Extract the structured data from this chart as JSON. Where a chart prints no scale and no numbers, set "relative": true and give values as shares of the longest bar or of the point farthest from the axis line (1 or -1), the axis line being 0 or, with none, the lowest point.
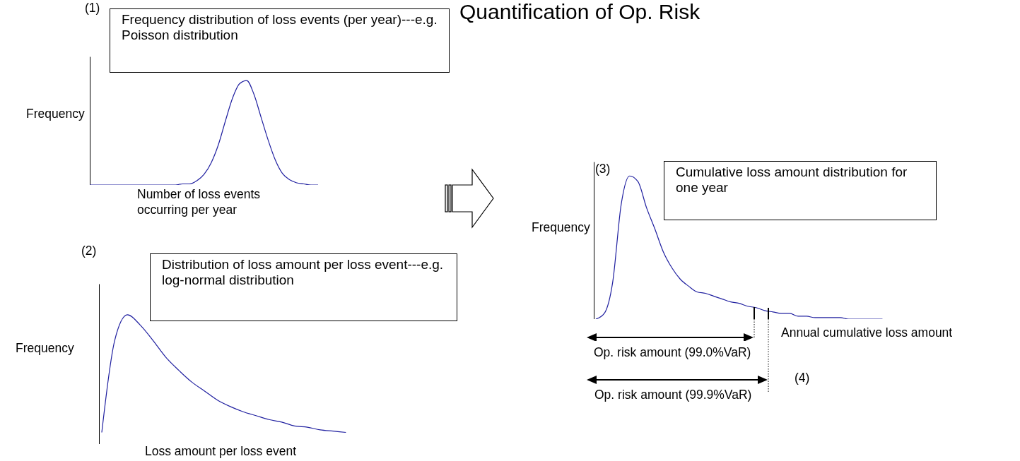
{
  "chart_data": [
    {
      "type": "line",
      "title": "Frequency distribution of loss events (per year)---e.g. Poisson distribution",
      "ylabel": "Frequency",
      "xlabel": "Number of loss events occurring per year",
      "annotations": [
        "(1)",
        "Quantification of Op. Risk"
      ],
      "relative": true,
      "categories": [
        null,
        null,
        null,
        null,
        null,
        null,
        null,
        null,
        null,
        null,
        null,
        null,
        null,
        null,
        null,
        null,
        null,
        null,
        null,
        null,
        null,
        null,
        null,
        null,
        null,
        null,
        null,
        null,
        null,
        null,
        null,
        null,
        null
      ],
      "series": [
        {
          "color": "#2020a0",
          "values": [
            0,
            0,
            0,
            0,
            0,
            0,
            0,
            0,
            0,
            0,
            0,
            0,
            0,
            0.01,
            0.01,
            0.04,
            0.1,
            0.21,
            0.38,
            0.61,
            0.83,
            0.97,
            1,
            0.87,
            0.65,
            0.43,
            0.24,
            0.11,
            0.05,
            0.02,
            0.01,
            0,
            0
          ]
        }
      ]
    },
    {
      "type": "line",
      "title": "Distribution of loss amount per loss event---e.g. log-normal distribution",
      "ylabel": "Frequency",
      "xlabel": "Loss amount per loss event",
      "annotations": [
        "(2)"
      ],
      "relative": true,
      "categories": [
        null,
        null,
        null,
        null,
        null,
        null,
        null,
        null,
        null,
        null,
        null,
        null,
        null,
        null,
        null,
        null,
        null,
        null,
        null,
        null
      ],
      "series": [
        {
          "color": "#2020a0",
          "values": [
            0.09,
            0.8,
            1,
            0.92,
            0.8,
            0.67,
            0.57,
            0.48,
            0.41,
            0.34,
            0.29,
            0.25,
            0.22,
            0.19,
            0.17,
            0.14,
            0.13,
            0.11,
            0.1,
            0.09
          ]
        }
      ]
    },
    {
      "type": "line",
      "title": "Cumulative loss amount distribution for one year",
      "ylabel": "Frequency",
      "xlabel": "Annual cumulative loss amount",
      "annotations": [
        "(3)",
        "Op. risk amount (99.0%VaR)",
        "Op. risk amount (99.9%VaR)",
        "(4)"
      ],
      "relative": true,
      "categories": [
        null,
        null,
        null,
        null,
        null,
        null,
        null,
        null,
        null,
        null,
        null,
        null,
        null,
        null,
        null,
        null,
        null,
        null,
        null,
        null,
        null,
        null,
        null,
        null,
        null,
        null,
        null,
        null,
        null,
        null,
        null,
        null,
        null,
        null,
        null
      ],
      "series": [
        {
          "color": "#2020a0",
          "values": [
            0,
            0.04,
            0.26,
            0.8,
            1,
            0.96,
            0.78,
            0.63,
            0.47,
            0.36,
            0.28,
            0.23,
            0.19,
            0.18,
            0.16,
            0.14,
            0.12,
            0.11,
            0.09,
            0.08,
            0.06,
            0.05,
            0.04,
            0.04,
            0.02,
            0.02,
            0.01,
            0.01,
            0.01,
            0.01,
            0,
            0,
            0,
            0,
            0
          ]
        }
      ]
    }
  ]
}
